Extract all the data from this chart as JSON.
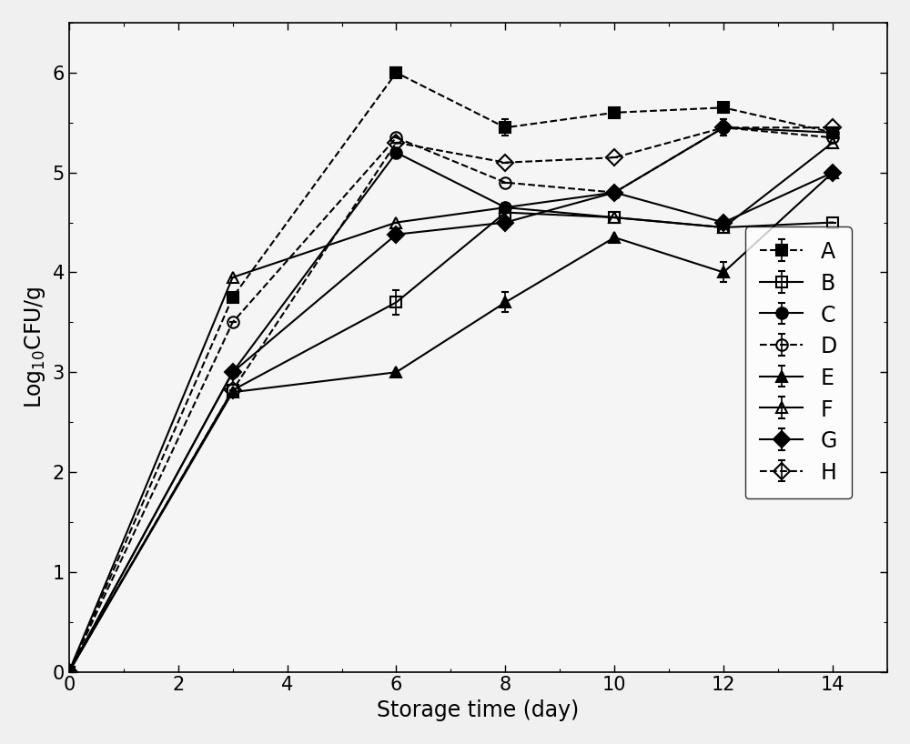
{
  "x": [
    0,
    3,
    6,
    8,
    10,
    12,
    14
  ],
  "series": {
    "A": {
      "y": [
        0,
        3.75,
        6.0,
        5.45,
        5.6,
        5.65,
        5.4
      ],
      "yerr": [
        0,
        0.0,
        0.05,
        0.08,
        0.0,
        0.0,
        0.0
      ],
      "marker": "s",
      "fillstyle": "full",
      "linestyle": "--",
      "color": "black"
    },
    "B": {
      "y": [
        0,
        2.82,
        3.7,
        4.6,
        4.55,
        4.45,
        4.5
      ],
      "yerr": [
        0,
        0.0,
        0.12,
        0.1,
        0.0,
        0.0,
        0.0
      ],
      "marker": "s",
      "fillstyle": "none",
      "linestyle": "-",
      "color": "black"
    },
    "C": {
      "y": [
        0,
        3.0,
        5.2,
        4.65,
        4.8,
        5.45,
        5.4
      ],
      "yerr": [
        0,
        0.0,
        0.0,
        0.0,
        0.0,
        0.08,
        0.0
      ],
      "marker": "o",
      "fillstyle": "full",
      "linestyle": "-",
      "color": "black"
    },
    "D": {
      "y": [
        0,
        3.5,
        5.35,
        4.9,
        4.8,
        5.45,
        5.35
      ],
      "yerr": [
        0,
        0.0,
        0.0,
        0.0,
        0.0,
        0.0,
        0.0
      ],
      "marker": "o",
      "fillstyle": "none",
      "linestyle": "--",
      "color": "black"
    },
    "E": {
      "y": [
        0,
        2.8,
        3.0,
        3.7,
        4.35,
        4.0,
        5.0
      ],
      "yerr": [
        0,
        0.0,
        0.0,
        0.1,
        0.0,
        0.1,
        0.0
      ],
      "marker": "^",
      "fillstyle": "full",
      "linestyle": "-",
      "color": "black"
    },
    "F": {
      "y": [
        0,
        3.95,
        4.5,
        4.65,
        4.55,
        4.45,
        5.3
      ],
      "yerr": [
        0,
        0.0,
        0.0,
        0.0,
        0.0,
        0.0,
        0.0
      ],
      "marker": "^",
      "fillstyle": "none",
      "linestyle": "-",
      "color": "black"
    },
    "G": {
      "y": [
        0,
        3.0,
        4.38,
        4.5,
        4.8,
        4.5,
        5.0
      ],
      "yerr": [
        0,
        0.0,
        0.0,
        0.0,
        0.0,
        0.0,
        0.0
      ],
      "marker": "D",
      "fillstyle": "full",
      "linestyle": "-",
      "color": "black"
    },
    "H": {
      "y": [
        0,
        2.82,
        5.3,
        5.1,
        5.15,
        5.45,
        5.45
      ],
      "yerr": [
        0,
        0.0,
        0.0,
        0.0,
        0.0,
        0.0,
        0.0
      ],
      "marker": "D",
      "fillstyle": "none",
      "linestyle": "--",
      "color": "black"
    }
  },
  "xlabel": "Storage time (day)",
  "ylabel": "$\\mathrm{Log_{10}CFU/g}$",
  "xlim": [
    0,
    15
  ],
  "ylim": [
    0,
    6.5
  ],
  "xticks": [
    0,
    2,
    4,
    6,
    8,
    10,
    12,
    14
  ],
  "yticks": [
    0,
    1,
    2,
    3,
    4,
    5,
    6
  ],
  "background_color": "#f0f0f0",
  "plot_bg_color": "#f5f5f5",
  "label_fontsize": 17,
  "tick_fontsize": 15,
  "legend_fontsize": 17,
  "markersize": 9,
  "linewidth": 1.5
}
